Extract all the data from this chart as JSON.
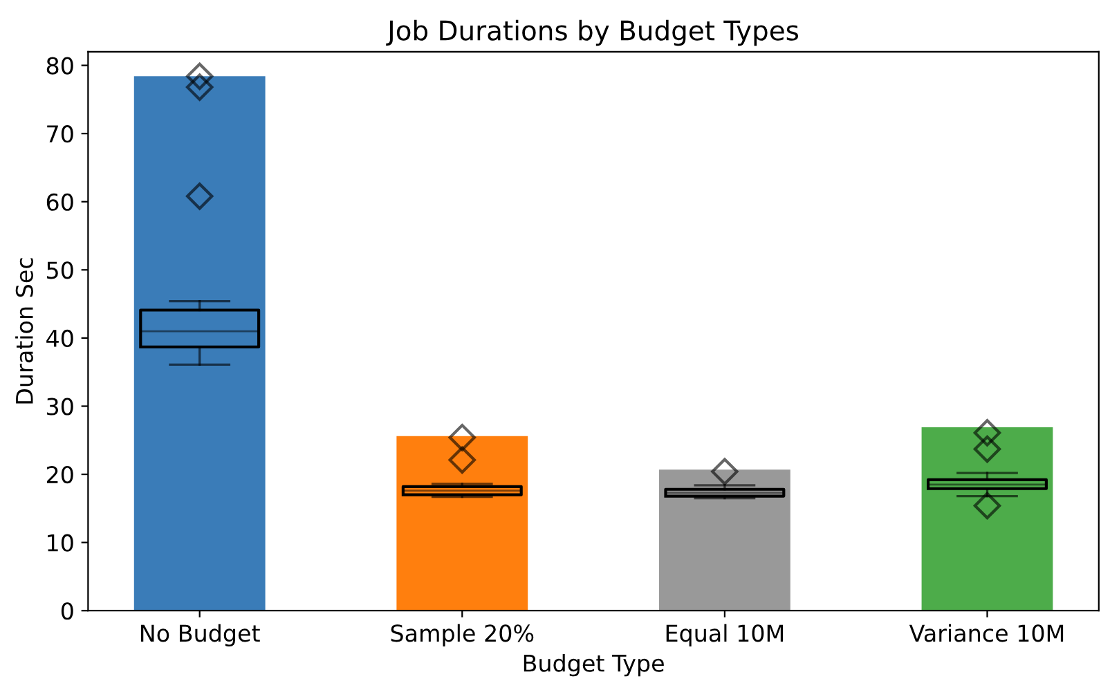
{
  "chart_data": {
    "type": "bar",
    "title": "Job Durations by Budget Types",
    "xlabel": "Budget Type",
    "ylabel": "Duration Sec",
    "categories": [
      "No Budget",
      "Sample 20%",
      "Equal 10M",
      "Variance 10M"
    ],
    "series": [
      {
        "values": [
          78.4,
          25.6,
          20.7,
          26.9
        ],
        "colors": [
          "#3a7cb8",
          "#ff7f0e",
          "#999999",
          "#4dac4a"
        ]
      },
      {
        "type": "box",
        "boxes": [
          {
            "low": 36.1,
            "q1": 38.7,
            "median": 41.0,
            "q3": 44.1,
            "high": 45.4,
            "outliers": [
              78.4,
              76.8,
              60.8
            ]
          },
          {
            "low": 16.7,
            "q1": 17.0,
            "median": 17.6,
            "q3": 18.2,
            "high": 18.6,
            "outliers": [
              25.4,
              22.1
            ]
          },
          {
            "low": 16.5,
            "q1": 16.8,
            "median": 17.3,
            "q3": 17.8,
            "high": 18.4,
            "outliers": [
              20.4
            ]
          },
          {
            "low": 16.8,
            "q1": 17.9,
            "median": 18.5,
            "q3": 19.2,
            "high": 20.2,
            "outliers": [
              26.1,
              23.7,
              15.4
            ]
          }
        ]
      }
    ],
    "ylim": [
      0,
      82
    ],
    "yticks": [
      0,
      10,
      20,
      30,
      40,
      50,
      60,
      70,
      80
    ],
    "grid": false,
    "legend": false,
    "marker": "diamond"
  }
}
